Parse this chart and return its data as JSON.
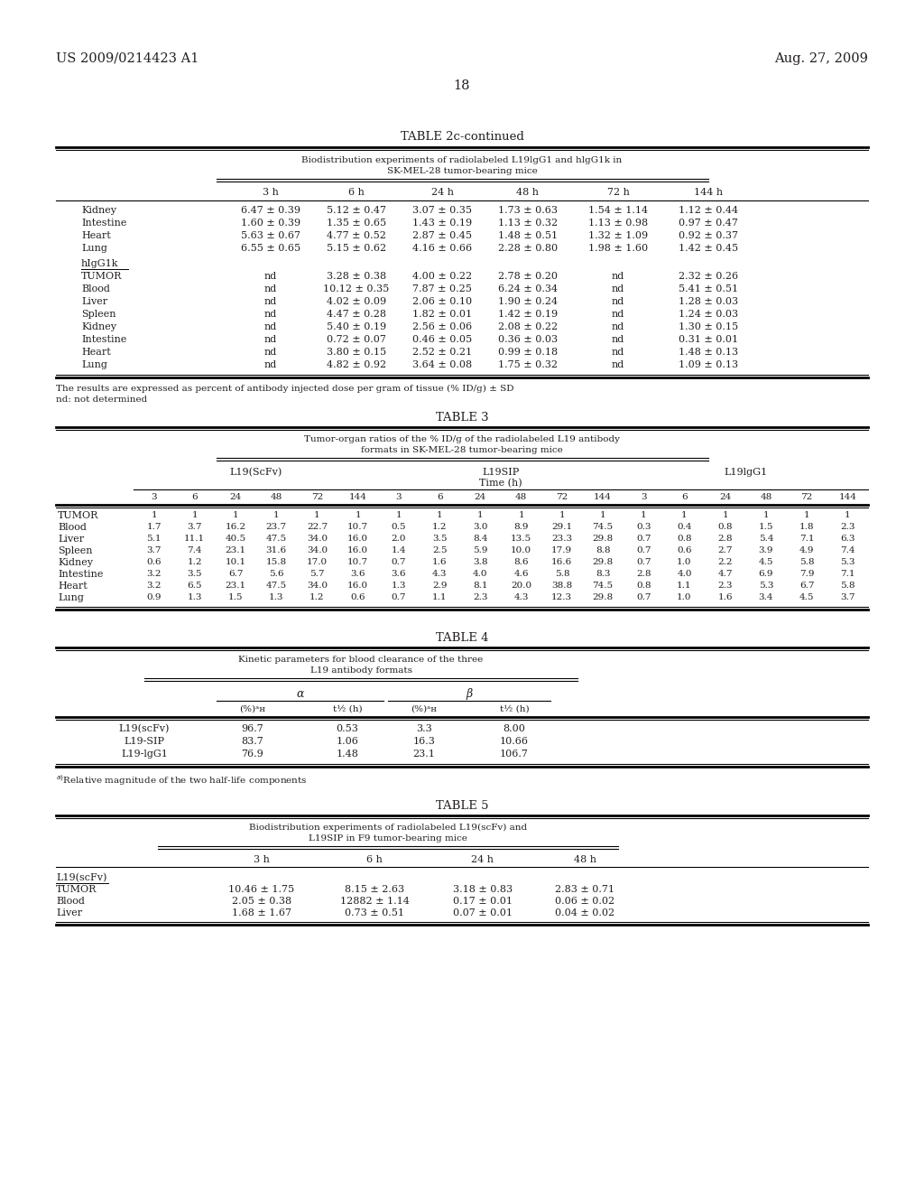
{
  "header_left": "US 2009/0214423 A1",
  "header_right": "Aug. 27, 2009",
  "page_number": "18",
  "background_color": "#ffffff",
  "text_color": "#231f20",
  "table2c_title": "TABLE 2c-continued",
  "table2c_subtitle1": "Biodistribution experiments of radiolabeled L19lgG1 and hlgG1k in",
  "table2c_subtitle2": "SK-MEL-28 tumor-bearing mice",
  "table2c_col_headers": [
    "3 h",
    "6 h",
    "24 h",
    "48 h",
    "72 h",
    "144 h"
  ],
  "table2c_rows_s1": [
    [
      "Kidney",
      "6.47 ± 0.39",
      "5.12 ± 0.47",
      "3.07 ± 0.35",
      "1.73 ± 0.63",
      "1.54 ± 1.14",
      "1.12 ± 0.44"
    ],
    [
      "Intestine",
      "1.60 ± 0.39",
      "1.35 ± 0.65",
      "1.43 ± 0.19",
      "1.13 ± 0.32",
      "1.13 ± 0.98",
      "0.97 ± 0.47"
    ],
    [
      "Heart",
      "5.63 ± 0.67",
      "4.77 ± 0.52",
      "2.87 ± 0.45",
      "1.48 ± 0.51",
      "1.32 ± 1.09",
      "0.92 ± 0.37"
    ],
    [
      "Lung",
      "6.55 ± 0.65",
      "5.15 ± 0.62",
      "4.16 ± 0.66",
      "2.28 ± 0.80",
      "1.98 ± 1.60",
      "1.42 ± 0.45"
    ]
  ],
  "table2c_section2_label": "hIgG1k",
  "table2c_rows_s2": [
    [
      "TUMOR",
      "nd",
      "3.28 ± 0.38",
      "4.00 ± 0.22",
      "2.78 ± 0.20",
      "nd",
      "2.32 ± 0.26"
    ],
    [
      "Blood",
      "nd",
      "10.12 ± 0.35",
      "7.87 ± 0.25",
      "6.24 ± 0.34",
      "nd",
      "5.41 ± 0.51"
    ],
    [
      "Liver",
      "nd",
      "4.02 ± 0.09",
      "2.06 ± 0.10",
      "1.90 ± 0.24",
      "nd",
      "1.28 ± 0.03"
    ],
    [
      "Spleen",
      "nd",
      "4.47 ± 0.28",
      "1.82 ± 0.01",
      "1.42 ± 0.19",
      "nd",
      "1.24 ± 0.03"
    ],
    [
      "Kidney",
      "nd",
      "5.40 ± 0.19",
      "2.56 ± 0.06",
      "2.08 ± 0.22",
      "nd",
      "1.30 ± 0.15"
    ],
    [
      "Intestine",
      "nd",
      "0.72 ± 0.07",
      "0.46 ± 0.05",
      "0.36 ± 0.03",
      "nd",
      "0.31 ± 0.01"
    ],
    [
      "Heart",
      "nd",
      "3.80 ± 0.15",
      "2.52 ± 0.21",
      "0.99 ± 0.18",
      "nd",
      "1.48 ± 0.13"
    ],
    [
      "Lung",
      "nd",
      "4.82 ± 0.92",
      "3.64 ± 0.08",
      "1.75 ± 0.32",
      "nd",
      "1.09 ± 0.13"
    ]
  ],
  "table2c_footnote1": "The results are expressed as percent of antibody injected dose per gram of tissue (% ID/g) ± SD",
  "table2c_footnote2": "nd: not determined",
  "table3_title": "TABLE 3",
  "table3_subtitle1": "Tumor-organ ratios of the % ID/g of the radiolabeled L19 antibody",
  "table3_subtitle2": "formats in SK-MEL-28 tumor-bearing mice",
  "table3_groups": [
    "L19(ScFv)",
    "L19SIP",
    "L19lgG1"
  ],
  "table3_time_label": "Time (h)",
  "table3_time_cols": [
    "3",
    "6",
    "24",
    "48",
    "72",
    "144",
    "3",
    "6",
    "24",
    "48",
    "72",
    "144",
    "3",
    "6",
    "24",
    "48",
    "72",
    "144"
  ],
  "table3_rows": [
    [
      "TUMOR",
      "1",
      "1",
      "1",
      "1",
      "1",
      "1",
      "1",
      "1",
      "1",
      "1",
      "1",
      "1",
      "1",
      "1",
      "1",
      "1",
      "1",
      "1"
    ],
    [
      "Blood",
      "1.7",
      "3.7",
      "16.2",
      "23.7",
      "22.7",
      "10.7",
      "0.5",
      "1.2",
      "3.0",
      "8.9",
      "29.1",
      "74.5",
      "0.3",
      "0.4",
      "0.8",
      "1.5",
      "1.8",
      "2.3"
    ],
    [
      "Liver",
      "5.1",
      "11.1",
      "40.5",
      "47.5",
      "34.0",
      "16.0",
      "2.0",
      "3.5",
      "8.4",
      "13.5",
      "23.3",
      "29.8",
      "0.7",
      "0.8",
      "2.8",
      "5.4",
      "7.1",
      "6.3"
    ],
    [
      "Spleen",
      "3.7",
      "7.4",
      "23.1",
      "31.6",
      "34.0",
      "16.0",
      "1.4",
      "2.5",
      "5.9",
      "10.0",
      "17.9",
      "8.8",
      "0.7",
      "0.6",
      "2.7",
      "3.9",
      "4.9",
      "7.4"
    ],
    [
      "Kidney",
      "0.6",
      "1.2",
      "10.1",
      "15.8",
      "17.0",
      "10.7",
      "0.7",
      "1.6",
      "3.8",
      "8.6",
      "16.6",
      "29.8",
      "0.7",
      "1.0",
      "2.2",
      "4.5",
      "5.8",
      "5.3"
    ],
    [
      "Intestine",
      "3.2",
      "3.5",
      "6.7",
      "5.6",
      "5.7",
      "3.6",
      "3.6",
      "4.3",
      "4.0",
      "4.6",
      "5.8",
      "8.3",
      "2.8",
      "4.0",
      "4.7",
      "6.9",
      "7.9",
      "7.1"
    ],
    [
      "Heart",
      "3.2",
      "6.5",
      "23.1",
      "47.5",
      "34.0",
      "16.0",
      "1.3",
      "2.9",
      "8.1",
      "20.0",
      "38.8",
      "74.5",
      "0.8",
      "1.1",
      "2.3",
      "5.3",
      "6.7",
      "5.8"
    ],
    [
      "Lung",
      "0.9",
      "1.3",
      "1.5",
      "1.3",
      "1.2",
      "0.6",
      "0.7",
      "1.1",
      "2.3",
      "4.3",
      "12.3",
      "29.8",
      "0.7",
      "1.0",
      "1.6",
      "3.4",
      "4.5",
      "3.7"
    ]
  ],
  "table4_title": "TABLE 4",
  "table4_subtitle1": "Kinetic parameters for blood clearance of the three",
  "table4_subtitle2": "L19 antibody formats",
  "table4_alpha_label": "α",
  "table4_beta_label": "β",
  "table4_rows": [
    [
      "L19(scFv)",
      "96.7",
      "0.53",
      "3.3",
      "8.00"
    ],
    [
      "L19-SIP",
      "83.7",
      "1.06",
      "16.3",
      "10.66"
    ],
    [
      "L19-lgG1",
      "76.9",
      "1.48",
      "23.1",
      "106.7"
    ]
  ],
  "table4_footnote": "Relative magnitude of the two half-life components",
  "table5_title": "TABLE 5",
  "table5_subtitle1": "Biodistribution experiments of radiolabeled L19(scFv) and",
  "table5_subtitle2": "L19SIP in F9 tumor-bearing mice",
  "table5_col_headers": [
    "3 h",
    "6 h",
    "24 h",
    "48 h"
  ],
  "table5_section_label": "L19(scFv)",
  "table5_rows": [
    [
      "TUMOR",
      "10.46 ± 1.75",
      "8.15 ± 2.63",
      "3.18 ± 0.83",
      "2.83 ± 0.71"
    ],
    [
      "Blood",
      "2.05 ± 0.38",
      "12882 ± 1.14",
      "0.17 ± 0.01",
      "0.06 ± 0.02"
    ],
    [
      "Liver",
      "1.68 ± 1.67",
      "0.73 ± 0.51",
      "0.07 ± 0.01",
      "0.04 ± 0.02"
    ]
  ]
}
